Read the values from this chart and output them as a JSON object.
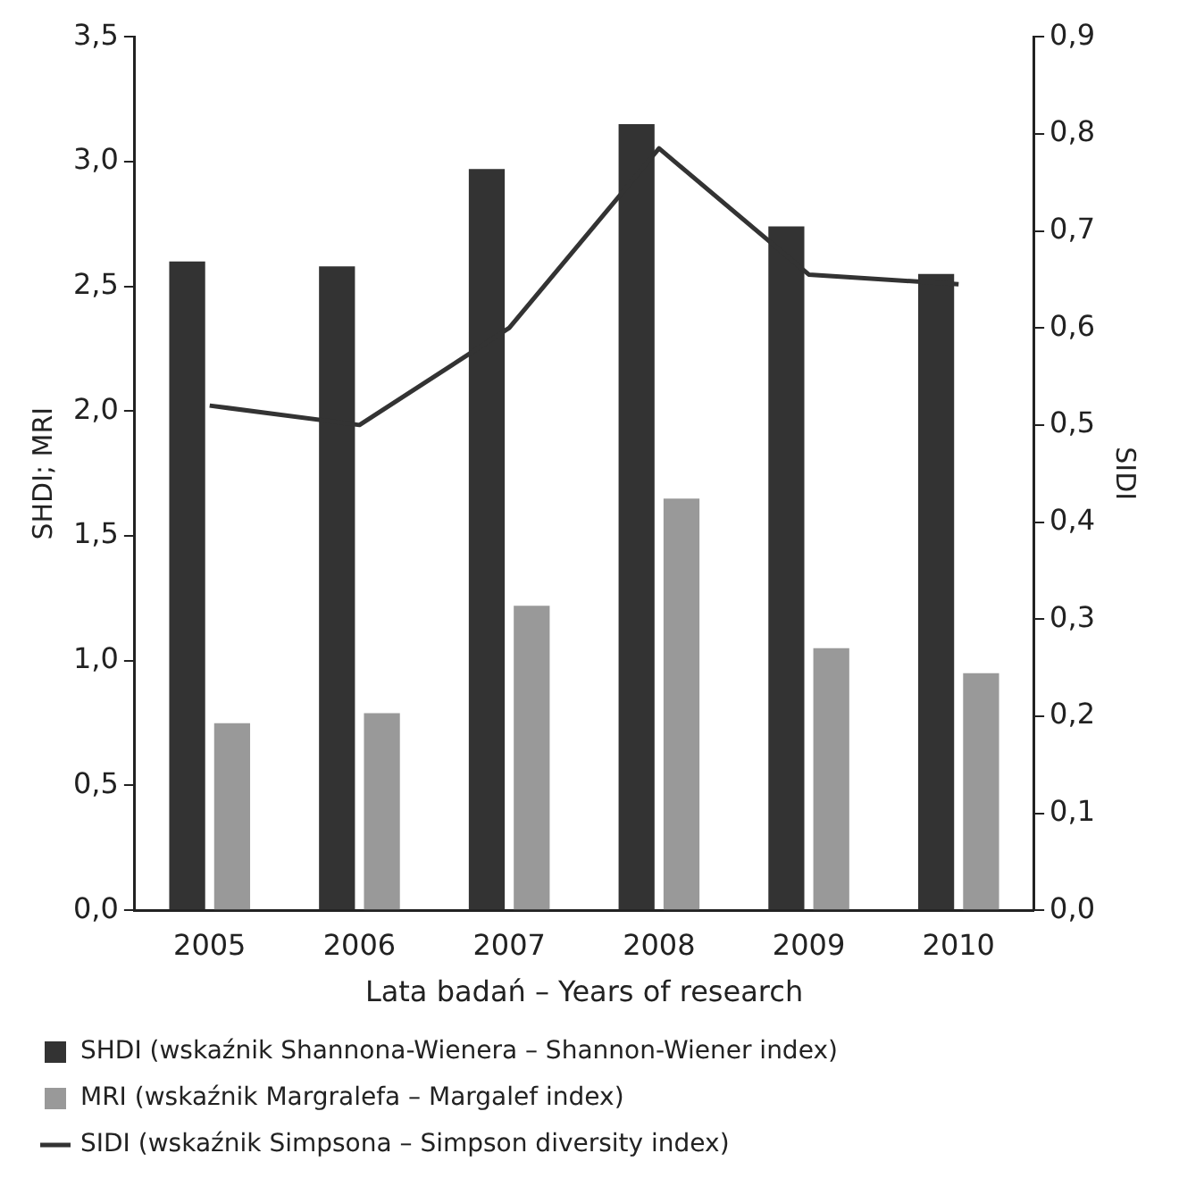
{
  "chart_data": {
    "type": "bar",
    "xlabel": "Lata badań – Years of research",
    "ylabel": "SHDI; MRI",
    "y2label": "SIDI",
    "categories": [
      "2005",
      "2006",
      "2007",
      "2008",
      "2009",
      "2010"
    ],
    "series": [
      {
        "name": "SHDI (wskaźnik Shannona-Wienera – Shannon-Wiener index)",
        "color": "#333333",
        "values": [
          2.6,
          2.58,
          2.97,
          3.15,
          2.74,
          2.55
        ]
      },
      {
        "name": "MRI (wskaźnik Margralefa – Margalef index)",
        "color": "#999999",
        "values": [
          0.75,
          0.79,
          1.22,
          1.65,
          1.05,
          0.95
        ]
      },
      {
        "name": "SIDI (wskaźnik Simpsona – Simpson diversity index)",
        "type": "line",
        "axis": "y2",
        "color": "#333333",
        "values": [
          0.52,
          0.5,
          0.6,
          0.785,
          0.655,
          0.645
        ]
      }
    ],
    "ylim": [
      0,
      3.5
    ],
    "yticks": [
      {
        "value": 0,
        "label": "0,0"
      },
      {
        "value": 0.5,
        "label": "0,5"
      },
      {
        "value": 1,
        "label": "1,0"
      },
      {
        "value": 1.5,
        "label": "1,5"
      },
      {
        "value": 2,
        "label": "2,0"
      },
      {
        "value": 2.5,
        "label": "2,5"
      },
      {
        "value": 3,
        "label": "3,0"
      },
      {
        "value": 3.5,
        "label": "3,5"
      }
    ],
    "y2lim": [
      0,
      0.9
    ],
    "y2ticks": [
      {
        "value": 0,
        "label": "0,0"
      },
      {
        "value": 0.1,
        "label": "0,1"
      },
      {
        "value": 0.2,
        "label": "0,2"
      },
      {
        "value": 0.3,
        "label": "0,3"
      },
      {
        "value": 0.4,
        "label": "0,4"
      },
      {
        "value": 0.5,
        "label": "0,5"
      },
      {
        "value": 0.6,
        "label": "0,6"
      },
      {
        "value": 0.7,
        "label": "0,7"
      },
      {
        "value": 0.8,
        "label": "0,8"
      },
      {
        "value": 0.9,
        "label": "0,9"
      }
    ],
    "grid": false,
    "legend": "bottom",
    "marker": "none",
    "line_style": "solid"
  }
}
